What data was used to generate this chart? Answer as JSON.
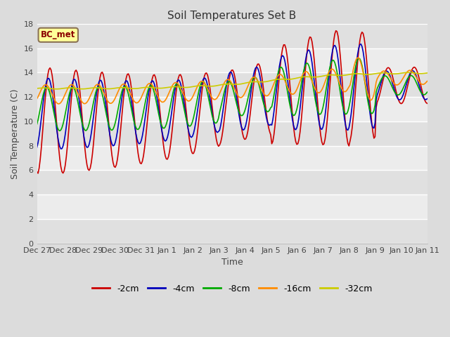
{
  "title": "Soil Temperatures Set B",
  "xlabel": "Time",
  "ylabel": "Soil Temperature (C)",
  "ylim": [
    0,
    18
  ],
  "yticks": [
    0,
    2,
    4,
    6,
    8,
    10,
    12,
    14,
    16,
    18
  ],
  "x_labels": [
    "Dec 27",
    "Dec 28",
    "Dec 29",
    "Dec 30",
    "Dec 31",
    "Jan 1",
    "Jan 2",
    "Jan 3",
    "Jan 4",
    "Jan 5",
    "Jan 6",
    "Jan 7",
    "Jan 8",
    "Jan 9",
    "Jan 10",
    "Jan 11"
  ],
  "annotation_text": "BC_met",
  "annotation_bg": "#FFFF99",
  "annotation_border": "#8B7355",
  "annotation_text_color": "#8B0000",
  "series_colors": {
    "-2cm": "#CC0000",
    "-4cm": "#0000BB",
    "-8cm": "#00AA00",
    "-16cm": "#FF8C00",
    "-32cm": "#CCCC00"
  },
  "legend_order": [
    "-2cm",
    "-4cm",
    "-8cm",
    "-16cm",
    "-32cm"
  ],
  "bg_color": "#DCDCDC",
  "plot_bg_light": "#E8E8E8",
  "plot_bg_dark": "#D8D8D8",
  "grid_color": "#C8C8C8",
  "n_days": 15,
  "pts_per_day": 24
}
